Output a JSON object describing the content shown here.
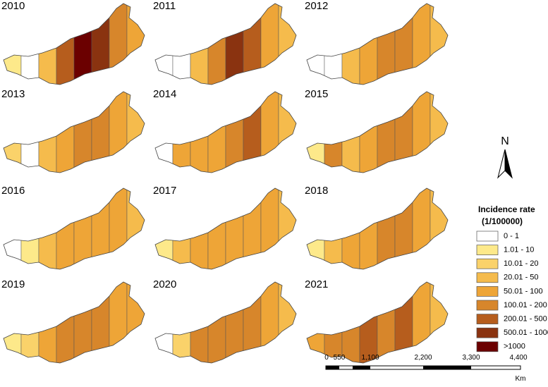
{
  "panels": [
    {
      "year": "2010"
    },
    {
      "year": "2011"
    },
    {
      "year": "2012"
    },
    {
      "year": "2013"
    },
    {
      "year": "2014"
    },
    {
      "year": "2015"
    },
    {
      "year": "2016"
    },
    {
      "year": "2017"
    },
    {
      "year": "2018"
    },
    {
      "year": "2019"
    },
    {
      "year": "2020"
    },
    {
      "year": "2021"
    }
  ],
  "legend": {
    "title": "Incidence rate",
    "unit": "(1/100000)",
    "items": [
      {
        "label": "0 - 1",
        "color": "#ffffff"
      },
      {
        "label": "1.01 - 10",
        "color": "#fde98a"
      },
      {
        "label": "10.01 - 20",
        "color": "#fad26a"
      },
      {
        "label": "20.01 - 50",
        "color": "#f5bb4c"
      },
      {
        "label": "50.01 - 100",
        "color": "#eea537"
      },
      {
        "label": "100.01 - 200",
        "color": "#d7862b"
      },
      {
        "label": "200.01 - 500",
        "color": "#b65d1d"
      },
      {
        "label": "500.01 - 1000",
        "color": "#8a3310"
      },
      {
        "label": ">1000",
        "color": "#6b0000"
      }
    ]
  },
  "north": "N",
  "scale": {
    "labels": [
      "0",
      "550",
      "1,100",
      "2,200",
      "3,300",
      "4,400"
    ],
    "unit": "Km"
  }
}
